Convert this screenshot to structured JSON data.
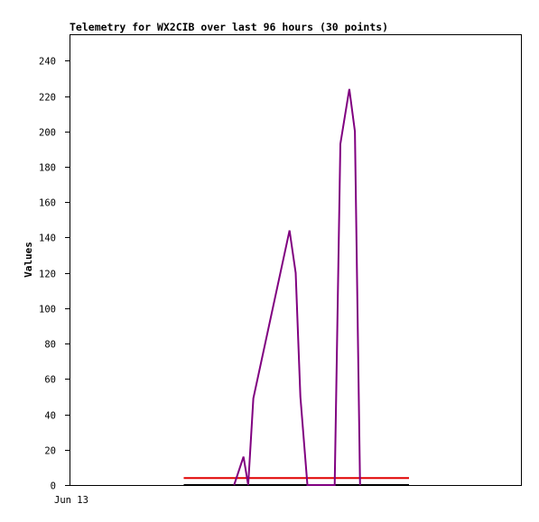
{
  "chart_data": {
    "type": "line",
    "title": "Telemetry for WX2CIB over last 96 hours (30 points)",
    "xlabel": "",
    "ylabel": "Values",
    "ylim": [
      0,
      255
    ],
    "xlim": [
      0,
      96
    ],
    "x_tick_labels": [
      "Jun 13"
    ],
    "y_ticks": [
      0,
      20,
      40,
      60,
      80,
      100,
      120,
      140,
      160,
      180,
      200,
      220,
      240
    ],
    "grid": false,
    "legend": "none",
    "series": [
      {
        "color": "#000000",
        "x": [
          24.1,
          72.0
        ],
        "y": [
          0,
          0
        ]
      },
      {
        "color": "#e00000",
        "x": [
          24.1,
          72.0
        ],
        "y": [
          4,
          4
        ]
      },
      {
        "color": "#800080",
        "x": [
          34.8,
          36.8,
          37.8,
          38.9,
          46.6,
          47.9,
          48.9,
          50.4,
          56.2,
          57.4,
          59.3,
          60.5,
          61.6
        ],
        "y": [
          0,
          16,
          0,
          49,
          144,
          120,
          50,
          0,
          0,
          193,
          224,
          200,
          0
        ]
      }
    ]
  }
}
